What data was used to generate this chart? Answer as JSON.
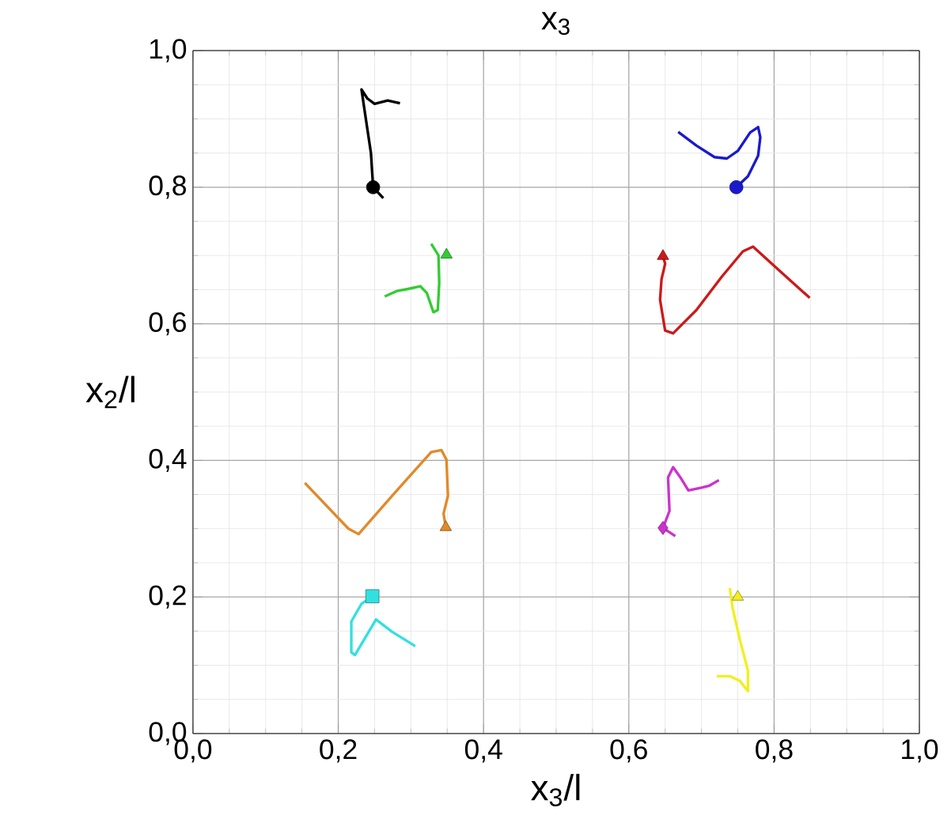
{
  "chart_data": {
    "type": "line",
    "title": "x$_{3}$",
    "xlabel": "x$_{3}$/l",
    "ylabel": "x$_{2}$/l",
    "xlim": [
      0,
      1
    ],
    "ylim": [
      0,
      1
    ],
    "xticks": [
      {
        "value": 0,
        "label": "0,0"
      },
      {
        "value": 0.2,
        "label": "0,2"
      },
      {
        "value": 0.4,
        "label": "0,4"
      },
      {
        "value": 0.6,
        "label": "0,6"
      },
      {
        "value": 0.8,
        "label": "0,8"
      },
      {
        "value": 1,
        "label": "1,0"
      }
    ],
    "yticks": [
      {
        "value": 0,
        "label": "0,0"
      },
      {
        "value": 0.2,
        "label": "0,2"
      },
      {
        "value": 0.4,
        "label": "0,4"
      },
      {
        "value": 0.6,
        "label": "0,6"
      },
      {
        "value": 0.8,
        "label": "0,8"
      },
      {
        "value": 1,
        "label": "1,0"
      }
    ],
    "grid": true,
    "series": [
      {
        "color": "#000000",
        "x": [
          0.262,
          0.248,
          0.245,
          0.238,
          0.232,
          0.24,
          0.25,
          0.268,
          0.285
        ],
        "values": [
          0.784,
          0.8,
          0.85,
          0.9,
          0.943,
          0.93,
          0.922,
          0.927,
          0.923
        ]
      },
      {
        "type": "scatter",
        "marker": "circle",
        "color": "#000000",
        "x": [
          0.248
        ],
        "values": [
          0.8
        ]
      },
      {
        "color": "#1a1acc",
        "x": [
          0.748,
          0.764,
          0.778,
          0.781,
          0.778,
          0.767,
          0.75,
          0.735,
          0.718,
          0.693,
          0.668
        ],
        "values": [
          0.8,
          0.816,
          0.846,
          0.873,
          0.888,
          0.88,
          0.853,
          0.842,
          0.844,
          0.861,
          0.881
        ]
      },
      {
        "type": "scatter",
        "marker": "circle",
        "color": "#1a1acc",
        "x": [
          0.748
        ],
        "values": [
          0.8
        ]
      },
      {
        "color": "#33cc33",
        "x": [
          0.328,
          0.338,
          0.339,
          0.337,
          0.331,
          0.322,
          0.313,
          0.296,
          0.281,
          0.264
        ],
        "values": [
          0.717,
          0.7,
          0.66,
          0.62,
          0.617,
          0.645,
          0.655,
          0.651,
          0.648,
          0.64
        ]
      },
      {
        "type": "scatter",
        "marker": "triangle",
        "color": "#33cc33",
        "x": [
          0.349
        ],
        "values": [
          0.701
        ]
      },
      {
        "color": "#cc1a1a",
        "x": [
          0.647,
          0.65,
          0.645,
          0.643,
          0.65,
          0.661,
          0.693,
          0.728,
          0.757,
          0.771,
          0.806,
          0.849
        ],
        "values": [
          0.699,
          0.688,
          0.665,
          0.635,
          0.59,
          0.586,
          0.62,
          0.669,
          0.706,
          0.713,
          0.679,
          0.638
        ]
      },
      {
        "type": "scatter",
        "marker": "triangle",
        "color": "#cc1a1a",
        "x": [
          0.647
        ],
        "values": [
          0.699
        ]
      },
      {
        "color": "#e08a2a",
        "x": [
          0.348,
          0.345,
          0.351,
          0.349,
          0.342,
          0.328,
          0.274,
          0.228,
          0.214,
          0.154
        ],
        "values": [
          0.302,
          0.322,
          0.348,
          0.401,
          0.415,
          0.412,
          0.348,
          0.292,
          0.3,
          0.367
        ]
      },
      {
        "type": "scatter",
        "marker": "triangle",
        "color": "#e08a2a",
        "x": [
          0.348
        ],
        "values": [
          0.302
        ]
      },
      {
        "color": "#cc33cc",
        "x": [
          0.664,
          0.647,
          0.656,
          0.654,
          0.661,
          0.671,
          0.682,
          0.7,
          0.711,
          0.724
        ],
        "values": [
          0.289,
          0.301,
          0.326,
          0.375,
          0.39,
          0.375,
          0.356,
          0.36,
          0.363,
          0.371
        ]
      },
      {
        "type": "scatter",
        "marker": "diamond",
        "color": "#cc33cc",
        "x": [
          0.647
        ],
        "values": [
          0.301
        ]
      },
      {
        "color": "#33e0e0",
        "x": [
          0.247,
          0.232,
          0.218,
          0.218,
          0.223,
          0.252,
          0.274,
          0.306
        ],
        "values": [
          0.201,
          0.19,
          0.164,
          0.119,
          0.115,
          0.167,
          0.149,
          0.128
        ]
      },
      {
        "type": "scatter",
        "marker": "square",
        "color": "#33e0e0",
        "x": [
          0.247
        ],
        "values": [
          0.201
        ]
      },
      {
        "color": "#f0f020",
        "x": [
          0.739,
          0.743,
          0.753,
          0.764,
          0.764,
          0.753,
          0.739,
          0.721
        ],
        "values": [
          0.213,
          0.183,
          0.137,
          0.092,
          0.062,
          0.077,
          0.084,
          0.084
        ]
      },
      {
        "type": "scatter",
        "marker": "triangle",
        "color": "#f0f020",
        "x": [
          0.75
        ],
        "values": [
          0.2
        ]
      }
    ]
  }
}
